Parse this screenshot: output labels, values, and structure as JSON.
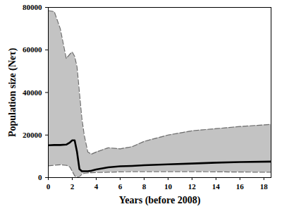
{
  "chart_data": {
    "type": "line",
    "xlabel": "Years (before 2008)",
    "ylabel": "Population size (Neτ)",
    "x": [
      0,
      0.5,
      1,
      1.5,
      1.8,
      2,
      2.2,
      2.4,
      2.6,
      2.8,
      3,
      3.3,
      3.6,
      4,
      5,
      6,
      7,
      8,
      10,
      12,
      14,
      16,
      18.6
    ],
    "values": [
      15200,
      15300,
      15300,
      15500,
      16500,
      17500,
      17500,
      12000,
      4000,
      3000,
      3000,
      3000,
      3200,
      3800,
      4800,
      5300,
      5500,
      5800,
      6200,
      6600,
      7000,
      7300,
      7500
    ],
    "upper": [
      78500,
      78000,
      70000,
      56000,
      58000,
      59000,
      57000,
      52000,
      40000,
      28000,
      20000,
      12000,
      11000,
      12000,
      14000,
      13500,
      14500,
      17000,
      20000,
      22000,
      23000,
      24000,
      25000
    ],
    "lower": [
      5500,
      5800,
      6000,
      5800,
      5000,
      3000,
      800,
      300,
      500,
      1500,
      2000,
      2200,
      2300,
      2400,
      2500,
      2700,
      2800,
      2800,
      2800,
      2800,
      2700,
      2600,
      2500
    ],
    "xlim": [
      0,
      18.6
    ],
    "ylim": [
      0,
      80000
    ],
    "xticks": [
      0,
      2,
      4,
      6,
      8,
      10,
      12,
      14,
      16,
      18
    ],
    "yticks": [
      0,
      20000,
      40000,
      60000,
      80000
    ],
    "color": "#000000",
    "grid": false
  }
}
